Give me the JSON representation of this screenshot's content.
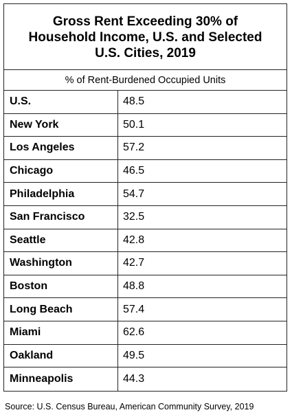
{
  "chart_data": {
    "type": "table",
    "title": "Gross Rent Exceeding 30% of Household Income, U.S. and Selected U.S. Cities, 2019",
    "column_header": "% of Rent-Burdened Occupied Units",
    "rows": [
      {
        "city": "U.S.",
        "value": "48.5"
      },
      {
        "city": "New York",
        "value": "50.1"
      },
      {
        "city": "Los Angeles",
        "value": "57.2"
      },
      {
        "city": "Chicago",
        "value": "46.5"
      },
      {
        "city": "Philadelphia",
        "value": "54.7"
      },
      {
        "city": "San Francisco",
        "value": "32.5"
      },
      {
        "city": "Seattle",
        "value": "42.8"
      },
      {
        "city": "Washington",
        "value": "42.7"
      },
      {
        "city": "Boston",
        "value": "48.8"
      },
      {
        "city": "Long Beach",
        "value": "57.4"
      },
      {
        "city": "Miami",
        "value": "62.6"
      },
      {
        "city": "Oakland",
        "value": "49.5"
      },
      {
        "city": "Minneapolis",
        "value": "44.3"
      }
    ],
    "source": "Source: U.S. Census Bureau, American Community Survey, 2019"
  }
}
